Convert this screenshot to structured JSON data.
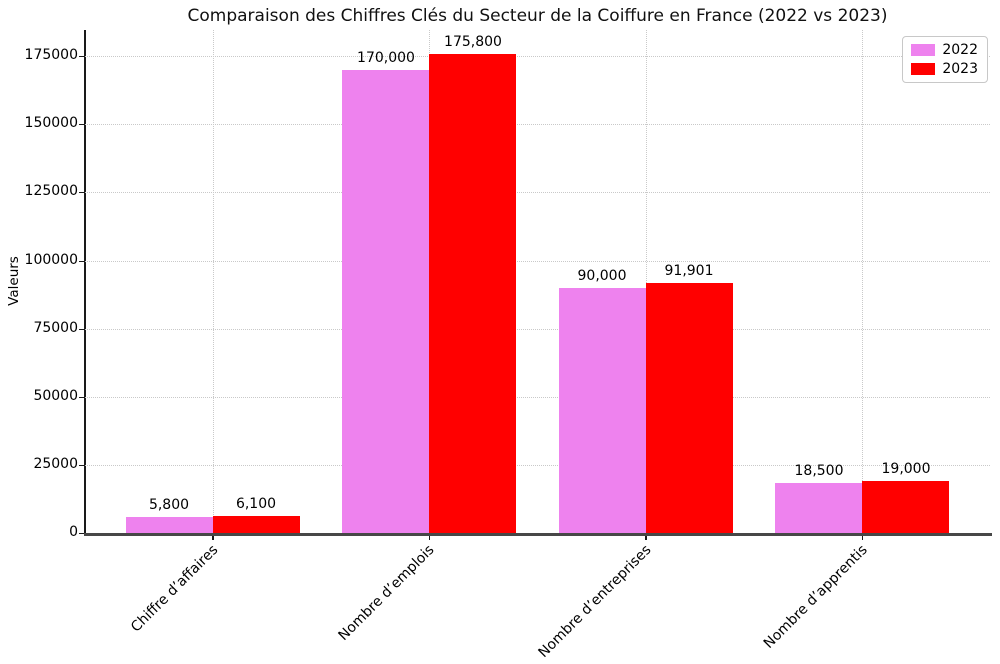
{
  "chart_data": {
    "type": "bar",
    "title": "Comparaison des Chiffres Clés du Secteur de la Coiffure en France (2022 vs 2023)",
    "xlabel": "",
    "ylabel": "Valeurs",
    "categories": [
      "Chiffre d’affaires",
      "Nombre d’emplois",
      "Nombre d’entreprises",
      "Nombre d’apprentis"
    ],
    "series": [
      {
        "name": "2022",
        "color": "#EE82EE",
        "values": [
          5800,
          170000,
          90000,
          18500
        ],
        "labels": [
          "5,800",
          "170,000",
          "90,000",
          "18,500"
        ]
      },
      {
        "name": "2023",
        "color": "#FF0000",
        "values": [
          6100,
          175800,
          91901,
          19000
        ],
        "labels": [
          "6,100",
          "175,800",
          "91,901",
          "19,000"
        ]
      }
    ],
    "yticks": [
      0,
      25000,
      50000,
      75000,
      100000,
      125000,
      150000,
      175000
    ],
    "ylim": [
      0,
      184600
    ],
    "grid": true,
    "legend_position": "upper right"
  }
}
